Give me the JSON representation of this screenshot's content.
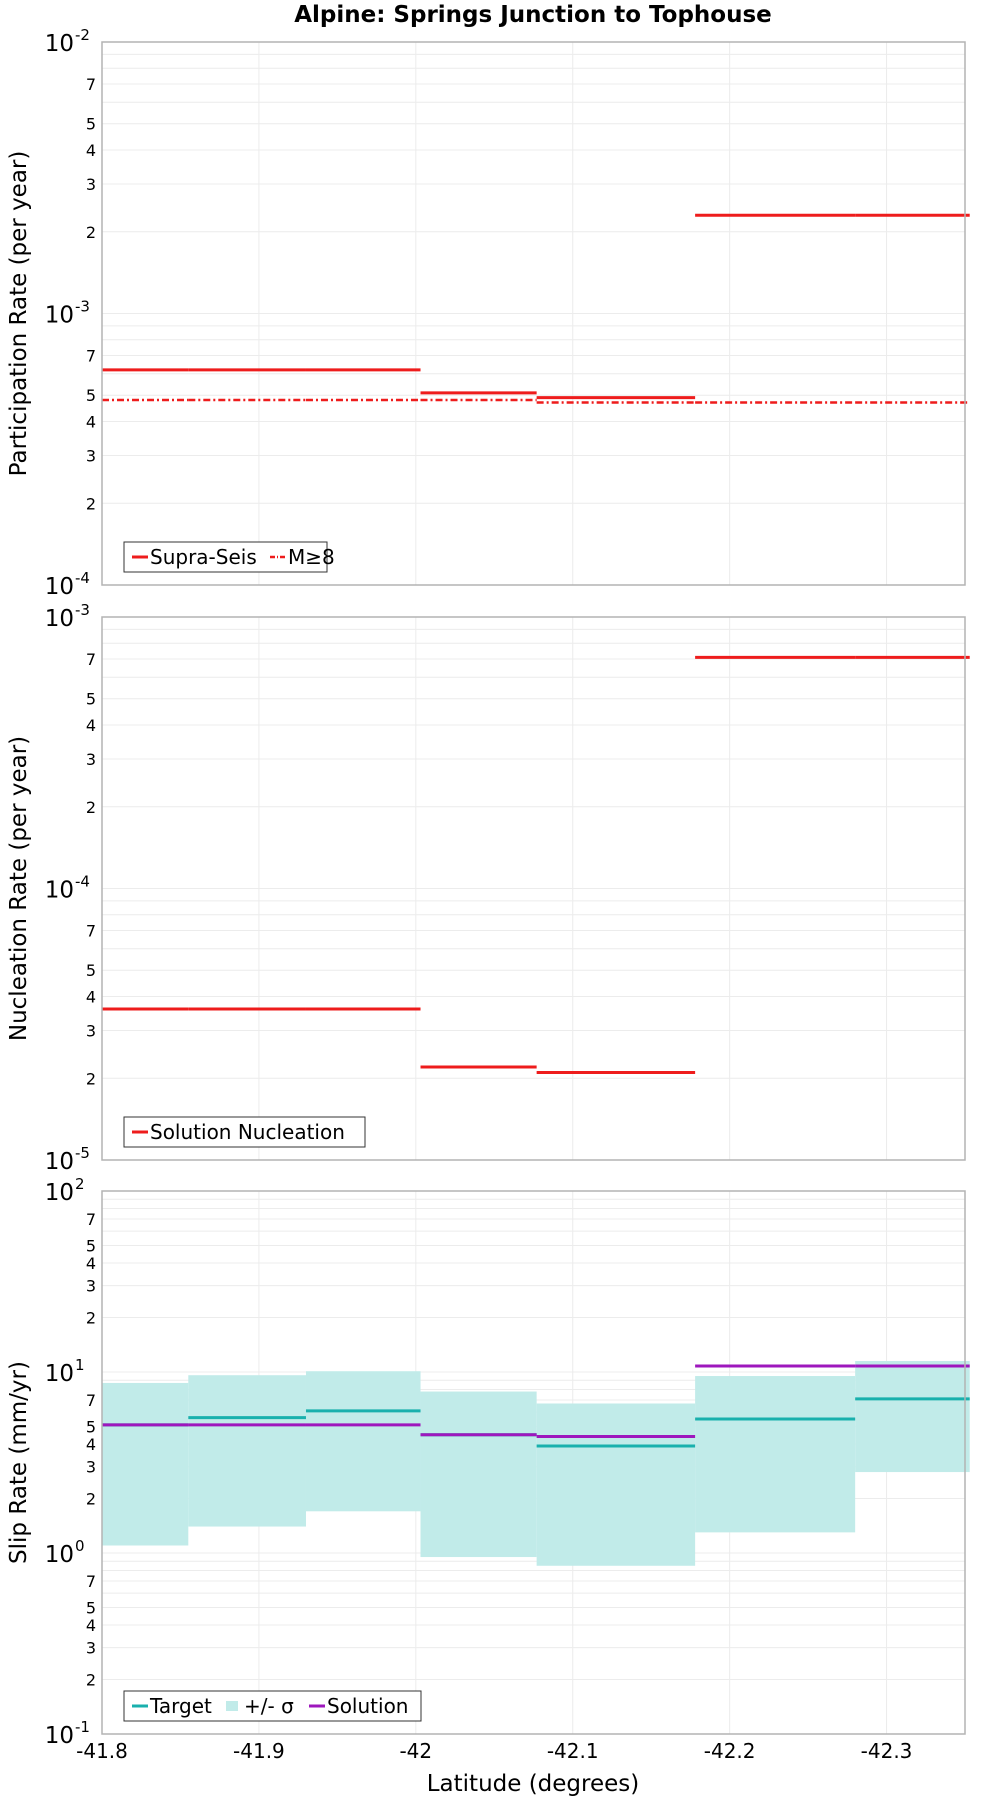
{
  "figure": {
    "title": "Alpine: Springs Junction to Tophouse",
    "xlabel": "Latitude (degrees)"
  },
  "colors": {
    "red": "#ee1c1c",
    "teal": "#19b0ad",
    "band": "#c1ebe9",
    "purple": "#9e17bd",
    "grid": "#ececec",
    "frame": "#b3b3b3"
  },
  "chart_data": [
    {
      "type": "line",
      "title": "Alpine: Springs Junction to Tophouse",
      "xlabel": "Latitude (degrees)",
      "ylabel": "Participation Rate (per year)",
      "yscale": "log",
      "xlim": [
        -41.8,
        -42.35
      ],
      "ylim": [
        0.0001,
        0.01
      ],
      "xticks": [
        "-41.8",
        "-41.9",
        "-42",
        "-42.1",
        "-42.2",
        "-42.3"
      ],
      "legend_position": "bottom-left",
      "series": [
        {
          "name": "Supra-Seis",
          "style": "solid",
          "color": "#ee1c1c",
          "steps": [
            [
              -41.8,
              -41.855,
              0.00062
            ],
            [
              -41.855,
              -41.93,
              0.00062
            ],
            [
              -41.93,
              -42.003,
              0.00062
            ],
            [
              -42.003,
              -42.077,
              0.00051
            ],
            [
              -42.077,
              -42.178,
              0.00049
            ],
            [
              -42.178,
              -42.28,
              0.0023
            ],
            [
              -42.28,
              -42.353,
              0.0023
            ]
          ]
        },
        {
          "name": "M≥8",
          "style": "dashdot",
          "color": "#ee1c1c",
          "steps": [
            [
              -41.8,
              -41.855,
              0.00048
            ],
            [
              -41.855,
              -41.93,
              0.00048
            ],
            [
              -41.93,
              -42.003,
              0.00048
            ],
            [
              -42.003,
              -42.077,
              0.00048
            ],
            [
              -42.077,
              -42.178,
              0.00047
            ],
            [
              -42.178,
              -42.28,
              0.00047
            ],
            [
              -42.28,
              -42.353,
              0.00047
            ]
          ]
        }
      ]
    },
    {
      "type": "line",
      "ylabel": "Nucleation Rate (per year)",
      "yscale": "log",
      "xlim": [
        -41.8,
        -42.35
      ],
      "ylim": [
        1e-05,
        0.001
      ],
      "legend_position": "bottom-left",
      "series": [
        {
          "name": "Solution Nucleation",
          "style": "solid",
          "color": "#ee1c1c",
          "steps": [
            [
              -41.8,
              -41.855,
              3.6e-05
            ],
            [
              -41.855,
              -41.93,
              3.6e-05
            ],
            [
              -41.93,
              -42.003,
              3.6e-05
            ],
            [
              -42.003,
              -42.077,
              2.2e-05
            ],
            [
              -42.077,
              -42.178,
              2.1e-05
            ],
            [
              -42.178,
              -42.28,
              0.00071
            ],
            [
              -42.28,
              -42.353,
              0.00071
            ]
          ]
        }
      ]
    },
    {
      "type": "line",
      "ylabel": "Slip Rate (mm/yr)",
      "yscale": "log",
      "xlim": [
        -41.8,
        -42.35
      ],
      "ylim": [
        0.1,
        100
      ],
      "legend_position": "bottom-left",
      "series": [
        {
          "name": "Target",
          "style": "solid",
          "color": "#19b0ad",
          "steps": [
            [
              -41.8,
              -41.855,
              5.1
            ],
            [
              -41.855,
              -41.93,
              5.6
            ],
            [
              -41.93,
              -42.003,
              6.1
            ],
            [
              -42.003,
              -42.077,
              4.5
            ],
            [
              -42.077,
              -42.178,
              3.9
            ],
            [
              -42.178,
              -42.28,
              5.5
            ],
            [
              -42.28,
              -42.353,
              7.1
            ]
          ]
        },
        {
          "name": "+/- σ",
          "style": "band",
          "color": "#c1ebe9",
          "lower": [
            1.1,
            1.4,
            1.7,
            0.95,
            0.85,
            1.3,
            2.8
          ],
          "upper": [
            8.7,
            9.6,
            10.1,
            7.8,
            6.7,
            9.5,
            11.5
          ],
          "bins": [
            [
              -41.8,
              -41.855
            ],
            [
              -41.855,
              -41.93
            ],
            [
              -41.93,
              -42.003
            ],
            [
              -42.003,
              -42.077
            ],
            [
              -42.077,
              -42.178
            ],
            [
              -42.178,
              -42.28
            ],
            [
              -42.28,
              -42.353
            ]
          ]
        },
        {
          "name": "Solution",
          "style": "solid",
          "color": "#9e17bd",
          "steps": [
            [
              -41.8,
              -41.855,
              5.1
            ],
            [
              -41.855,
              -41.93,
              5.1
            ],
            [
              -41.93,
              -42.003,
              5.1
            ],
            [
              -42.003,
              -42.077,
              4.5
            ],
            [
              -42.077,
              -42.178,
              4.4
            ],
            [
              -42.178,
              -42.28,
              10.8
            ],
            [
              -42.28,
              -42.353,
              10.8
            ]
          ]
        }
      ]
    }
  ]
}
